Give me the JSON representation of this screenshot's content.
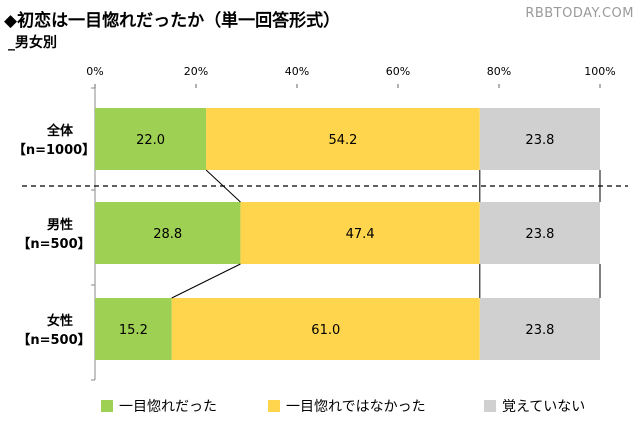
{
  "header": {
    "title": "◆初恋は一目惚れだったか（単一回答形式）",
    "subtitle": "_男女別",
    "watermark": "RBBTODAY.COM"
  },
  "chart_data": {
    "type": "bar",
    "orientation": "horizontal",
    "stacked": "100%",
    "categories": [
      {
        "name": "全体",
        "sample": "【n=1000】"
      },
      {
        "name": "男性",
        "sample": "【n=500】"
      },
      {
        "name": "女性",
        "sample": "【n=500】"
      }
    ],
    "series": [
      {
        "name": "一目惚れだった",
        "color": "#9dd053",
        "values": [
          22.0,
          28.8,
          15.2
        ]
      },
      {
        "name": "一目惚れではなかった",
        "color": "#ffd54d",
        "values": [
          54.2,
          47.4,
          61.0
        ]
      },
      {
        "name": "覚えていない",
        "color": "#d0d0d0",
        "values": [
          23.8,
          23.8,
          23.8
        ]
      }
    ],
    "x_ticks": [
      "0%",
      "20%",
      "40%",
      "60%",
      "80%",
      "100%"
    ],
    "xlim": [
      0,
      100
    ],
    "grid": false,
    "legend_position": "bottom"
  }
}
